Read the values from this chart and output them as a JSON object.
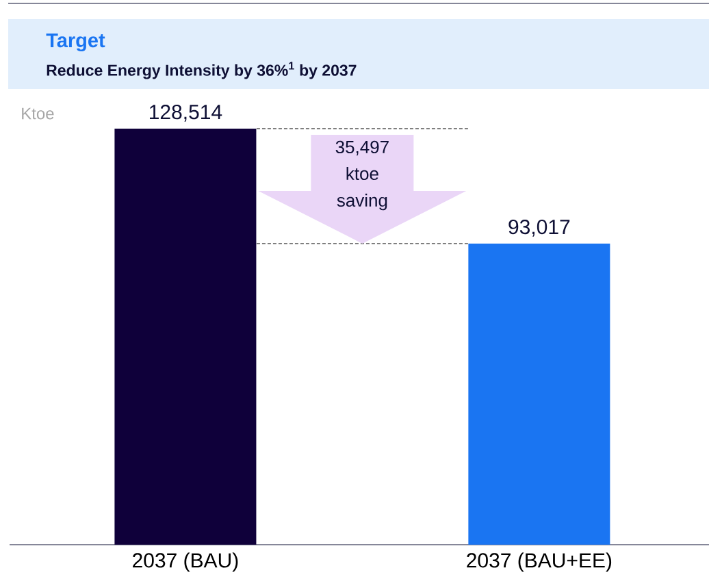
{
  "chart_data": {
    "type": "bar",
    "title": "Target",
    "subtitle": "Reduce Energy Intensity by 36%$^{1}$ by 2037",
    "ylabel": "Ktoe",
    "categories": [
      "2037 (BAU)",
      "2037 (BAU+EE)"
    ],
    "values": [
      128514,
      93017
    ],
    "value_labels": [
      "128,514",
      "93,017"
    ],
    "colors": [
      "#0f003a",
      "#1a75f2"
    ],
    "ref_lines": [
      {
        "axis": "y",
        "value": 128514,
        "line_style": "dashed",
        "color": "#000000"
      },
      {
        "axis": "y",
        "value": 93017,
        "line_style": "dashed",
        "color": "#000000"
      }
    ],
    "annotations": [
      "35,497 ktoe saving"
    ]
  }
}
